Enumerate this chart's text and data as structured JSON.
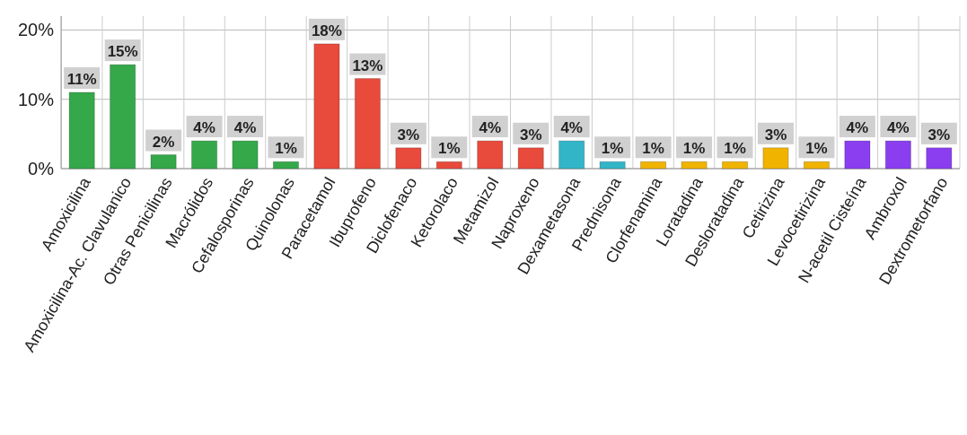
{
  "chart_data": {
    "type": "bar",
    "categories": [
      "Amoxicilina",
      "Amoxicilina-Ac. Clavulanico",
      "Otras Penicilinas",
      "Macrólidos",
      "Cefalosporinas",
      "Quinolonas",
      "Paracetamol",
      "Ibuprofeno",
      "Diclofenaco",
      "Ketorolaco",
      "Metamizol",
      "Naproxeno",
      "Dexametasona",
      "Prednisona",
      "Clorfenamina",
      "Loratadina",
      "Desloratadina",
      "Cetirizina",
      "Levocetirizina",
      "N-acetil Cisteína",
      "Ambroxol",
      "Dextrometorfano"
    ],
    "values": [
      11,
      15,
      2,
      4,
      4,
      1,
      18,
      13,
      3,
      1,
      4,
      3,
      4,
      1,
      1,
      1,
      1,
      3,
      1,
      4,
      4,
      3
    ],
    "value_labels": [
      "11%",
      "15%",
      "2%",
      "4%",
      "4%",
      "1%",
      "18%",
      "13%",
      "3%",
      "1%",
      "4%",
      "3%",
      "4%",
      "1%",
      "1%",
      "1%",
      "1%",
      "3%",
      "1%",
      "4%",
      "4%",
      "3%"
    ],
    "colors": [
      "#35a84a",
      "#35a84a",
      "#35a84a",
      "#35a84a",
      "#35a84a",
      "#35a84a",
      "#e84a3c",
      "#e84a3c",
      "#e84a3c",
      "#e84a3c",
      "#e84a3c",
      "#e84a3c",
      "#33b5c8",
      "#33b5c8",
      "#f0b400",
      "#f0b400",
      "#f0b400",
      "#f0b400",
      "#f0b400",
      "#8a3ef0",
      "#8a3ef0",
      "#8a3ef0"
    ],
    "ylim": [
      0,
      22
    ],
    "yticks": [
      {
        "value": 0,
        "label": "0%"
      },
      {
        "value": 10,
        "label": "10%"
      },
      {
        "value": 20,
        "label": "20%"
      }
    ],
    "grid": true
  }
}
